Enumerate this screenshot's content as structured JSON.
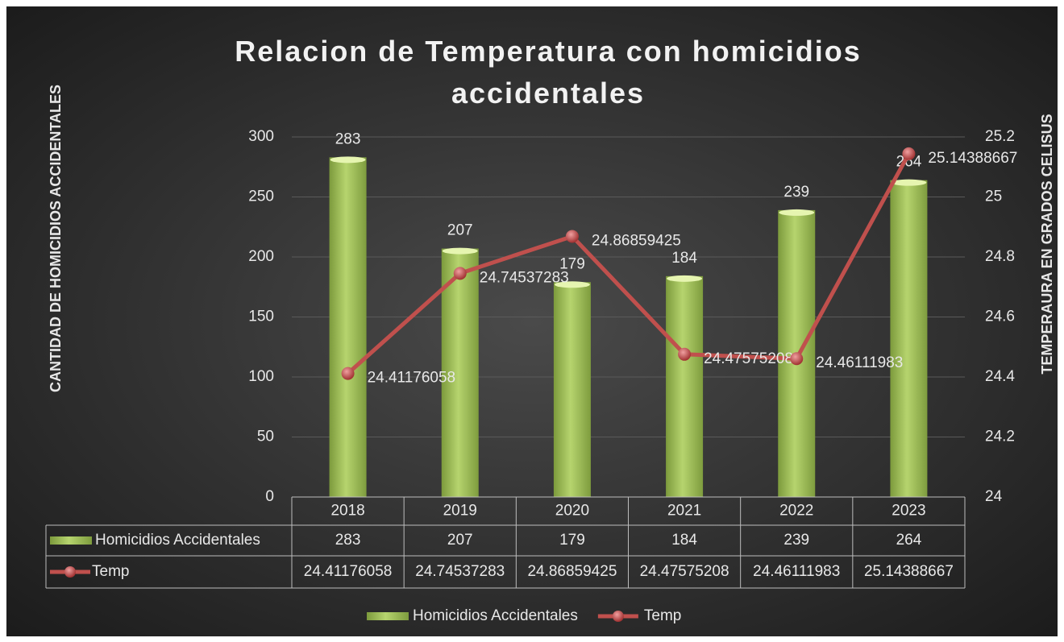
{
  "chart_data": {
    "type": "bar",
    "title": "Relacion de Temperatura con homicidios accidentales",
    "y_label": "CANTIDAD DE HOMICIDIOS ACCIDENTALES",
    "y2_label": "TEMPERAURA EN GRADOS CELISUS",
    "categories": [
      "2018",
      "2019",
      "2020",
      "2021",
      "2022",
      "2023"
    ],
    "series": [
      {
        "name": "Homicidios Accidentales",
        "type": "bar",
        "color": "#9bbb59",
        "values": [
          283,
          207,
          179,
          184,
          239,
          264
        ]
      },
      {
        "name": "Temp",
        "type": "line",
        "axis": "y2",
        "color": "#c0504d",
        "values": [
          24.41176058,
          24.74537283,
          24.86859425,
          24.47575208,
          24.46111983,
          25.14388667
        ]
      }
    ],
    "ylim": [
      0,
      300
    ],
    "yticks": [
      0,
      50,
      100,
      150,
      200,
      250,
      300
    ],
    "y2lim": [
      24,
      25.2
    ],
    "y2ticks": [
      24,
      24.2,
      24.4,
      24.6,
      24.8,
      25,
      25.2
    ],
    "grid": true,
    "legend": "bottom",
    "data_table": true
  }
}
